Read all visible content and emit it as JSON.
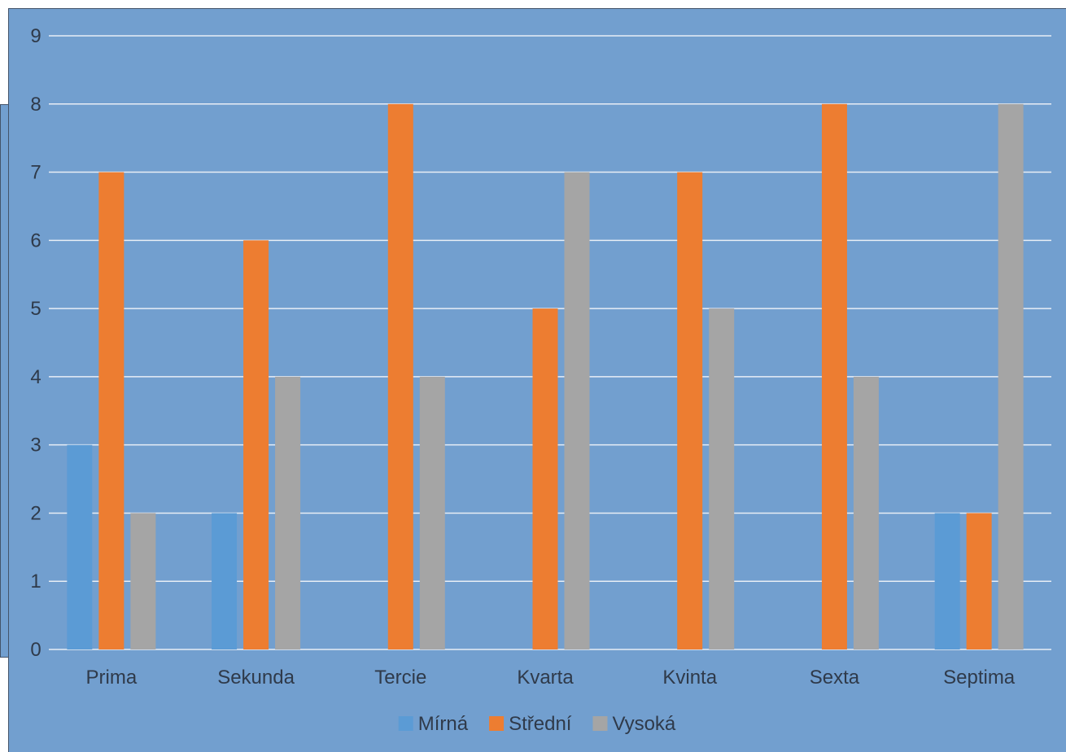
{
  "chart_data": {
    "type": "bar",
    "title": "",
    "xlabel": "",
    "ylabel": "",
    "categories": [
      "Prima",
      "Sekunda",
      "Tercie",
      "Kvarta",
      "Kvinta",
      "Sexta",
      "Septima"
    ],
    "series": [
      {
        "name": "Mírná",
        "color": "#5b9bd5",
        "values": [
          3,
          2,
          0,
          0,
          0,
          0,
          2
        ]
      },
      {
        "name": "Střední",
        "color": "#ed7d31",
        "values": [
          7,
          6,
          8,
          5,
          7,
          8,
          2
        ]
      },
      {
        "name": "Vysoká",
        "color": "#a5a5a5",
        "values": [
          2,
          4,
          4,
          7,
          5,
          4,
          8
        ]
      }
    ],
    "ylim": [
      0,
      9
    ],
    "yticks": [
      "0",
      "1",
      "2",
      "3",
      "4",
      "5",
      "6",
      "7",
      "8",
      "9"
    ],
    "grid": true,
    "legend": "bottom-center",
    "background_color": "#729fcf",
    "gridline_color": "#e8eef6"
  }
}
